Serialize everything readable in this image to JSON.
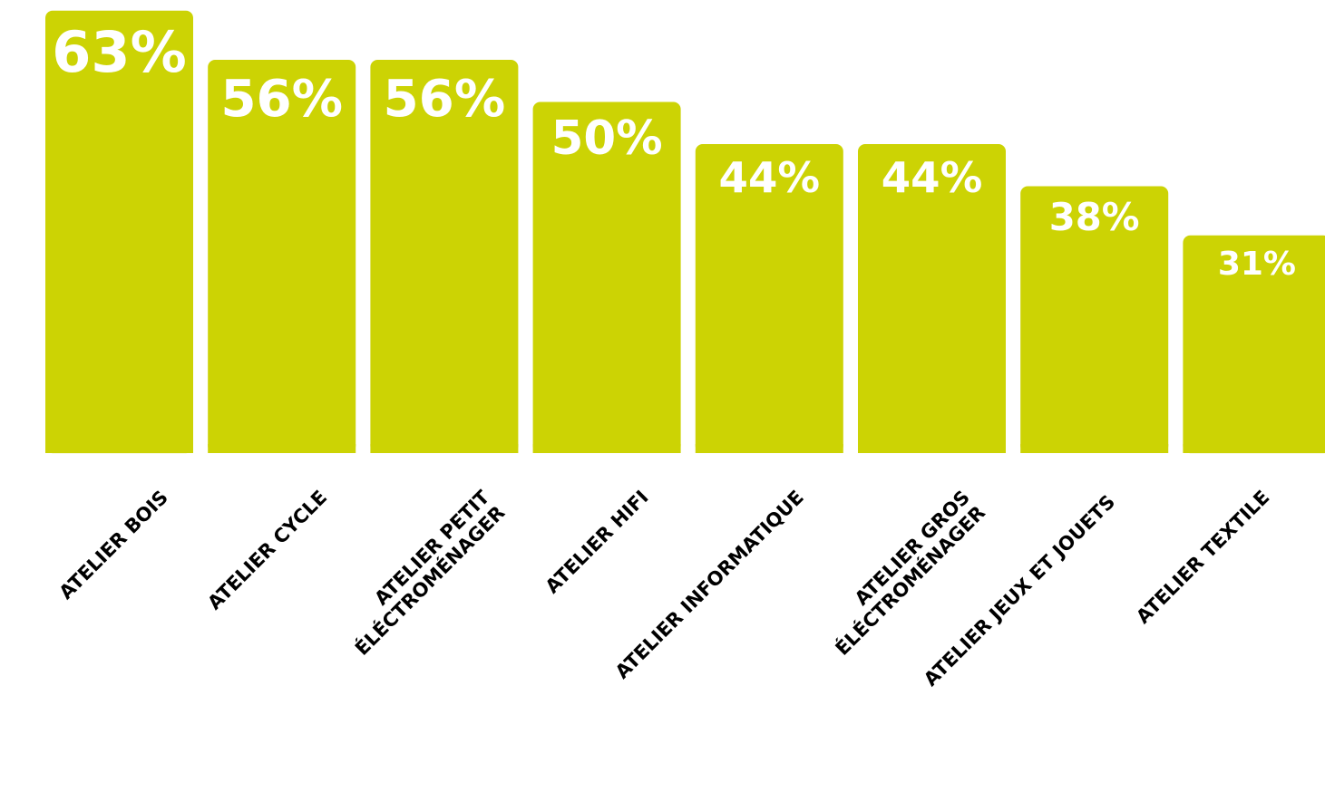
{
  "chart_data": {
    "type": "bar",
    "categories": [
      [
        "ATELIER BOIS"
      ],
      [
        "ATELIER CYCLE"
      ],
      [
        "ATELIER PETIT",
        "ÉLÉCTROMÉNAGER"
      ],
      [
        "ATELIER HIFI"
      ],
      [
        "ATELIER INFORMATIQUE"
      ],
      [
        "ATELIER GROS",
        "ÉLÉCTROMÉNAGER"
      ],
      [
        "ATELIER JEUX ET JOUETS"
      ],
      [
        "ATELIER TEXTILE"
      ]
    ],
    "values": [
      63,
      56,
      56,
      50,
      44,
      44,
      38,
      31
    ],
    "data_labels": [
      "63%",
      "56%",
      "56%",
      "50%",
      "44%",
      "44%",
      "38%",
      "31%"
    ],
    "unit": "%",
    "bar_color": "#ccd304",
    "grid": false,
    "legend": "none"
  }
}
